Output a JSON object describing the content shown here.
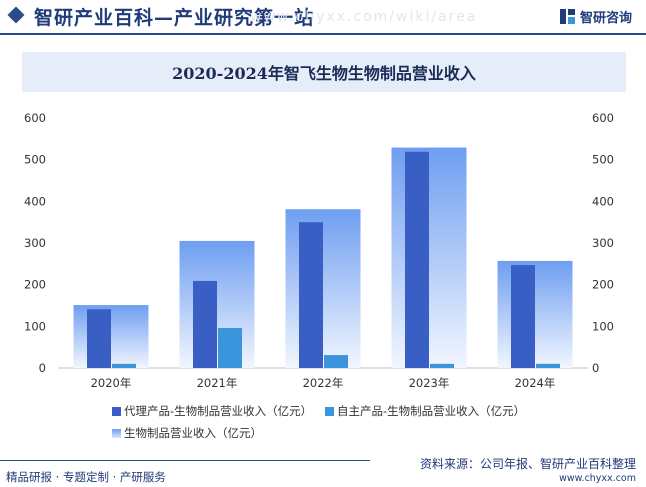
{
  "header": {
    "site_title": "智研产业百科—产业研究第一站",
    "watermark": "www.chyxx.com/wiki/area",
    "brand_name": "智研咨询",
    "brand_logo_icon": "zhiyan-logo-icon"
  },
  "colors": {
    "accent": "#2b4a8c",
    "agent_series": "#3a5fc4",
    "own_series": "#3b95dd",
    "total_series_top": "#6e9ef0",
    "total_series_bottom": "#f2f6ff"
  },
  "chart_data": {
    "type": "bar",
    "title": "2020-2024年智飞生物生物制品营业收入",
    "categories": [
      "2020年",
      "2021年",
      "2022年",
      "2023年",
      "2024年"
    ],
    "series": [
      {
        "name": "代理产品-生物制品营业收入（亿元）",
        "values": [
          141,
          209,
          350,
          519,
          247
        ],
        "axis": "left"
      },
      {
        "name": "自主产品-生物制品营业收入（亿元）",
        "values": [
          10,
          96,
          31,
          10,
          10
        ],
        "axis": "left"
      },
      {
        "name": "生物制品营业收入（亿元）",
        "values": [
          151,
          305,
          381,
          529,
          257
        ],
        "axis": "right"
      }
    ],
    "ylim": [
      0,
      600
    ],
    "y2lim": [
      0,
      600
    ],
    "yticks": [
      "0",
      "100",
      "200",
      "300",
      "400",
      "500",
      "600"
    ],
    "y2ticks": [
      "0",
      "100",
      "200",
      "300",
      "400",
      "500",
      "600"
    ],
    "grid": false,
    "legend_position": "bottom"
  },
  "footer": {
    "left_text": "精品研报 · 专题定制 · 产研服务",
    "source_text": "资料来源：公司年报、智研产业百科整理",
    "url": "www.chyxx.com"
  }
}
